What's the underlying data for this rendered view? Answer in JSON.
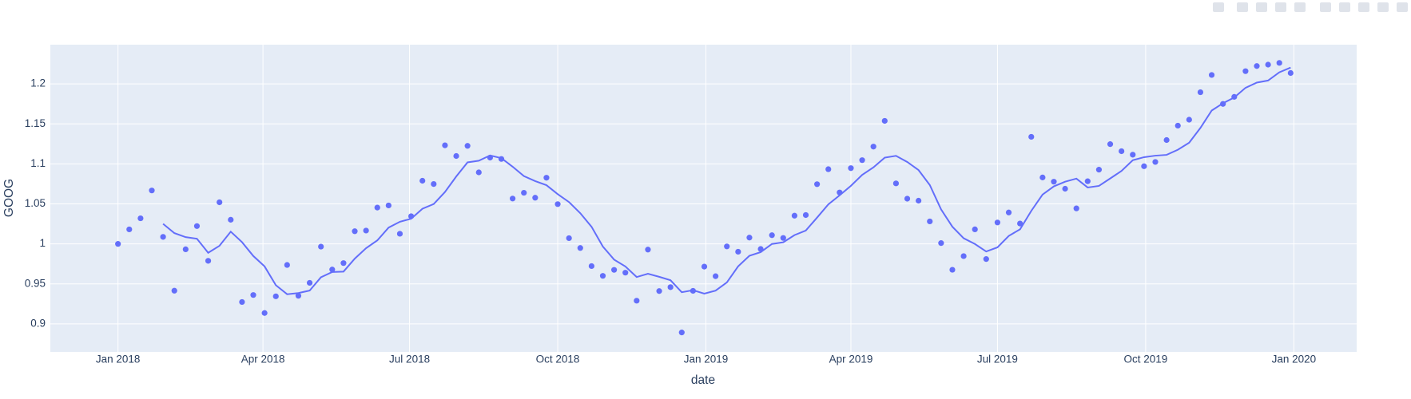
{
  "chart_data": {
    "type": "line",
    "x_label": "date",
    "y_label": "GOOG",
    "x": [
      "2018-01-01",
      "2018-01-08",
      "2018-01-15",
      "2018-01-22",
      "2018-01-29",
      "2018-02-05",
      "2018-02-12",
      "2018-02-19",
      "2018-02-26",
      "2018-03-05",
      "2018-03-12",
      "2018-03-19",
      "2018-03-26",
      "2018-04-02",
      "2018-04-09",
      "2018-04-16",
      "2018-04-23",
      "2018-04-30",
      "2018-05-07",
      "2018-05-14",
      "2018-05-21",
      "2018-05-28",
      "2018-06-04",
      "2018-06-11",
      "2018-06-18",
      "2018-06-25",
      "2018-07-02",
      "2018-07-09",
      "2018-07-16",
      "2018-07-23",
      "2018-07-30",
      "2018-08-06",
      "2018-08-13",
      "2018-08-20",
      "2018-08-27",
      "2018-09-03",
      "2018-09-10",
      "2018-09-17",
      "2018-09-24",
      "2018-10-01",
      "2018-10-08",
      "2018-10-15",
      "2018-10-22",
      "2018-10-29",
      "2018-11-05",
      "2018-11-12",
      "2018-11-19",
      "2018-11-26",
      "2018-12-03",
      "2018-12-10",
      "2018-12-17",
      "2018-12-24",
      "2018-12-31",
      "2019-01-07",
      "2019-01-14",
      "2019-01-21",
      "2019-01-28",
      "2019-02-04",
      "2019-02-11",
      "2019-02-18",
      "2019-02-25",
      "2019-03-04",
      "2019-03-11",
      "2019-03-18",
      "2019-03-25",
      "2019-04-01",
      "2019-04-08",
      "2019-04-15",
      "2019-04-22",
      "2019-04-29",
      "2019-05-06",
      "2019-05-13",
      "2019-05-20",
      "2019-05-27",
      "2019-06-03",
      "2019-06-10",
      "2019-06-17",
      "2019-06-24",
      "2019-07-01",
      "2019-07-08",
      "2019-07-15",
      "2019-07-22",
      "2019-07-29",
      "2019-08-05",
      "2019-08-12",
      "2019-08-19",
      "2019-08-26",
      "2019-09-02",
      "2019-09-09",
      "2019-09-16",
      "2019-09-23",
      "2019-09-30",
      "2019-10-07",
      "2019-10-14",
      "2019-10-21",
      "2019-10-28",
      "2019-11-04",
      "2019-11-11",
      "2019-11-18",
      "2019-11-25",
      "2019-12-02",
      "2019-12-09",
      "2019-12-16",
      "2019-12-23",
      "2019-12-30"
    ],
    "series": [
      {
        "mode": "markers",
        "color": "#636efa",
        "values": [
          1.0,
          1.018172,
          1.032008,
          1.066783,
          1.008773,
          0.941528,
          0.993259,
          1.022282,
          0.978852,
          1.052042,
          1.030204,
          0.92741,
          0.936111,
          0.913612,
          0.934497,
          0.973683,
          0.935153,
          0.951325,
          0.996606,
          0.967962,
          0.97604,
          1.015835,
          1.016679,
          1.045403,
          1.048069,
          1.012668,
          1.034612,
          1.078927,
          1.074863,
          1.123239,
          1.109857,
          1.122542,
          1.089411,
          1.107867,
          1.106175,
          1.056709,
          1.063904,
          1.057728,
          1.082716,
          1.049719,
          1.007208,
          0.994878,
          0.972306,
          0.960067,
          0.967563,
          0.964062,
          0.929008,
          0.992892,
          0.941048,
          0.945946,
          0.88931,
          0.941356,
          0.971633,
          0.959638,
          0.996851,
          0.990228,
          1.007891,
          0.993658,
          1.010867,
          1.007463,
          1.035287,
          1.036085,
          1.074652,
          1.093379,
          1.064318,
          1.094669,
          1.104696,
          1.121616,
          1.153767,
          1.075631,
          1.056527,
          1.054005,
          1.028159,
          1.001025,
          0.967681,
          0.984733,
          1.0182,
          0.981056,
          1.026777,
          1.039264,
          1.025487,
          1.133841,
          1.083061,
          1.077783,
          1.068985,
          1.044383,
          1.07832,
          1.09278,
          1.124683,
          1.115882,
          1.111519,
          1.097077,
          1.102463,
          1.129798,
          1.147832,
          1.155243,
          1.189603,
          1.211176,
          1.174968,
          1.183784,
          1.215905,
          1.222333,
          1.224055,
          1.226244,
          1.213608
        ]
      },
      {
        "mode": "lines",
        "color": "#636efa",
        "values": [
          null,
          null,
          null,
          null,
          1.0251,
          1.0135,
          1.0085,
          1.0065,
          0.9889,
          0.9976,
          1.0153,
          1.0022,
          0.9849,
          0.9719,
          0.9484,
          0.9371,
          0.9386,
          0.9417,
          0.9583,
          0.9649,
          0.9654,
          0.9816,
          0.9946,
          1.0044,
          1.0204,
          1.0277,
          1.0315,
          1.0439,
          1.0498,
          1.0649,
          1.0843,
          1.1019,
          1.104,
          1.1106,
          1.1072,
          1.0965,
          1.0848,
          1.0785,
          1.0734,
          1.0622,
          1.0523,
          1.0384,
          1.0214,
          0.9968,
          0.9804,
          0.9718,
          0.9586,
          0.9627,
          0.9589,
          0.9546,
          0.9396,
          0.9421,
          0.9379,
          0.9416,
          0.9518,
          0.9719,
          0.9852,
          0.9897,
          0.9999,
          1.002,
          1.011,
          1.0167,
          1.0329,
          1.0494,
          1.0607,
          1.0726,
          1.0863,
          1.0957,
          1.1078,
          1.1101,
          1.1024,
          1.0923,
          1.0736,
          1.0431,
          1.0215,
          1.0071,
          0.9999,
          0.9905,
          0.9957,
          1.01,
          1.0182,
          1.0413,
          1.0617,
          1.0719,
          1.0778,
          1.0816,
          1.0705,
          1.0725,
          1.0818,
          1.0912,
          1.1046,
          1.1084,
          1.1103,
          1.1113,
          1.1177,
          1.1265,
          1.145,
          1.1667,
          1.1758,
          1.183,
          1.1951,
          1.2016,
          1.2042,
          1.2145,
          1.2204
        ]
      }
    ],
    "xlim": [
      "2017-11-20",
      "2020-02-09"
    ],
    "xticks": [
      {
        "value": "2018-01-01",
        "label": "Jan 2018"
      },
      {
        "value": "2018-04-01",
        "label": "Apr 2018"
      },
      {
        "value": "2018-07-01",
        "label": "Jul 2018"
      },
      {
        "value": "2018-10-01",
        "label": "Oct 2018"
      },
      {
        "value": "2019-01-01",
        "label": "Jan 2019"
      },
      {
        "value": "2019-04-01",
        "label": "Apr 2019"
      },
      {
        "value": "2019-07-01",
        "label": "Jul 2019"
      },
      {
        "value": "2019-10-01",
        "label": "Oct 2019"
      },
      {
        "value": "2020-01-01",
        "label": "Jan 2020"
      }
    ],
    "ylim": [
      0.865,
      1.249
    ],
    "yticks": [
      0.9,
      0.95,
      1,
      1.05,
      1.1,
      1.15,
      1.2
    ],
    "grid": true,
    "plot_background": "#e5ecf6"
  }
}
